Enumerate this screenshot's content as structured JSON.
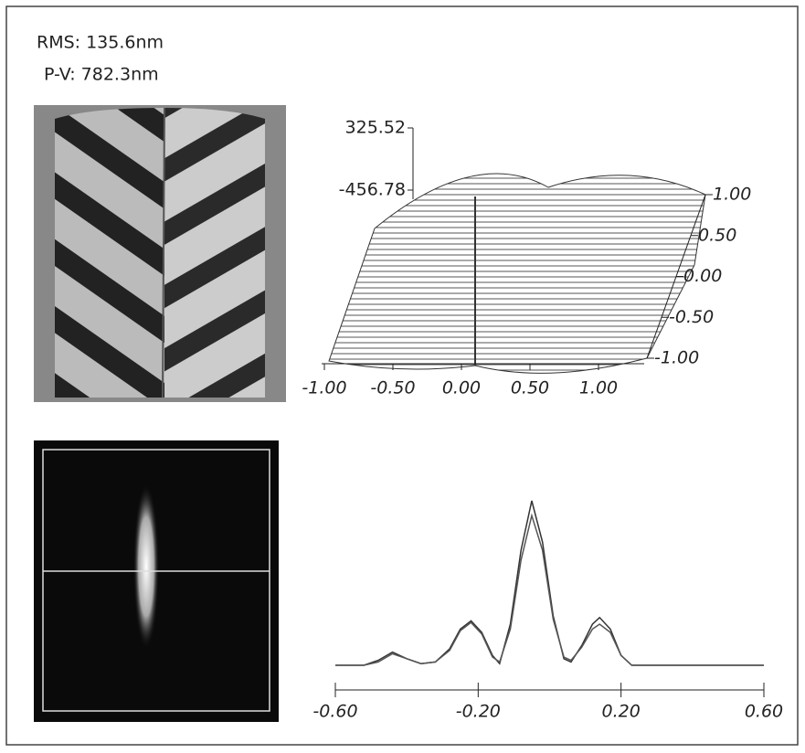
{
  "header": {
    "rms": "RMS: 135.6nm",
    "pv": "P-V: 782.3nm"
  },
  "chart_data": [
    {
      "type": "surface",
      "zlim": [
        -456.78,
        325.52
      ],
      "zticks": [
        -456.78,
        325.52
      ],
      "xlim": [
        -1,
        1
      ],
      "xticks": [
        {
          "value": -1,
          "label": "-1.00"
        },
        {
          "value": -0.5,
          "label": "-0.50"
        },
        {
          "value": 0,
          "label": "0.00"
        },
        {
          "value": 0.5,
          "label": "0.50"
        },
        {
          "value": 1,
          "label": "1.00"
        }
      ],
      "ylim": [
        -1,
        1
      ],
      "yticks": [
        {
          "value": 1,
          "label": "1.00"
        },
        {
          "value": 0.5,
          "label": "0.50"
        },
        {
          "value": 0,
          "label": "0.00"
        },
        {
          "value": -0.5,
          "label": "-0.50"
        },
        {
          "value": -1,
          "label": "-1.00"
        }
      ]
    },
    {
      "type": "line",
      "x": [
        -0.6,
        -0.52,
        -0.48,
        -0.44,
        -0.4,
        -0.36,
        -0.32,
        -0.28,
        -0.25,
        -0.22,
        -0.19,
        -0.16,
        -0.14,
        -0.11,
        -0.08,
        -0.05,
        -0.02,
        0.01,
        0.04,
        0.06,
        0.09,
        0.12,
        0.14,
        0.17,
        0.2,
        0.23,
        0.26,
        0.6
      ],
      "series": [
        {
          "color": "#333333",
          "values": [
            0,
            0,
            0.03,
            0.08,
            0.04,
            0.01,
            0.02,
            0.1,
            0.22,
            0.27,
            0.2,
            0.06,
            0.01,
            0.25,
            0.7,
            1.0,
            0.75,
            0.3,
            0.04,
            0.02,
            0.12,
            0.25,
            0.29,
            0.22,
            0.06,
            0,
            0,
            0
          ]
        },
        {
          "color": "#555555",
          "values": [
            0,
            0,
            0.02,
            0.07,
            0.04,
            0.01,
            0.02,
            0.09,
            0.21,
            0.26,
            0.19,
            0.05,
            0.02,
            0.22,
            0.64,
            0.91,
            0.7,
            0.28,
            0.05,
            0.03,
            0.11,
            0.22,
            0.25,
            0.2,
            0.06,
            0,
            0,
            0
          ]
        }
      ],
      "xlim": [
        -0.6,
        0.6
      ],
      "ylim": [
        0,
        1
      ],
      "xticks": [
        {
          "value": -0.6,
          "label": "-0.60"
        },
        {
          "value": -0.2,
          "label": "-0.20"
        },
        {
          "value": 0.2,
          "label": "0.20"
        },
        {
          "value": 0.6,
          "label": "0.60"
        }
      ]
    }
  ]
}
